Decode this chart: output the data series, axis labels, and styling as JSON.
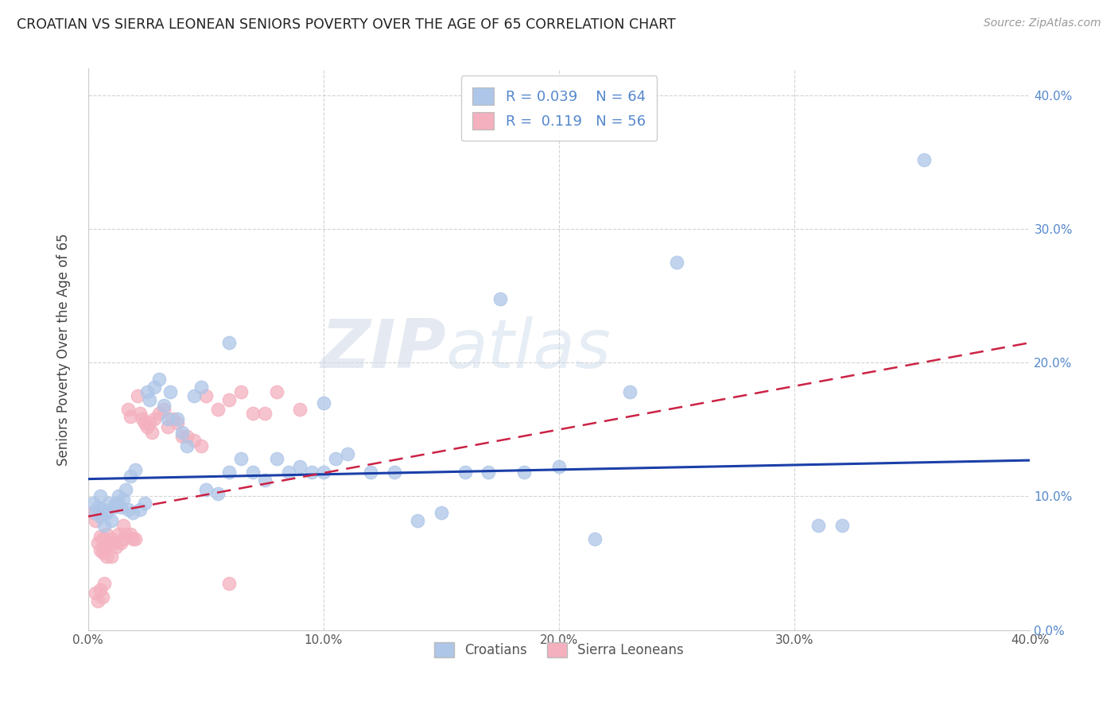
{
  "title": "CROATIAN VS SIERRA LEONEAN SENIORS POVERTY OVER THE AGE OF 65 CORRELATION CHART",
  "source": "Source: ZipAtlas.com",
  "ylabel": "Seniors Poverty Over the Age of 65",
  "xlim": [
    0.0,
    0.4
  ],
  "ylim": [
    0.0,
    0.42
  ],
  "xticks": [
    0.0,
    0.1,
    0.2,
    0.3,
    0.4
  ],
  "yticks": [
    0.0,
    0.1,
    0.2,
    0.3,
    0.4
  ],
  "xtick_labels": [
    "0.0%",
    "10.0%",
    "20.0%",
    "30.0%",
    "40.0%"
  ],
  "ytick_labels": [
    "0.0%",
    "10.0%",
    "20.0%",
    "30.0%",
    "40.0%"
  ],
  "croatian_color": "#aec6e8",
  "sierra_color": "#f4b0be",
  "trend_blue": "#1a3fa8",
  "trend_pink": "#cc2244",
  "watermark_text": "ZIPatlas",
  "legend_r_croatian": "R = 0.039",
  "legend_n_croatian": "N = 64",
  "legend_r_sierra": "R =  0.119",
  "legend_n_sierra": "N = 56",
  "croatian_x": [
    0.002,
    0.003,
    0.004,
    0.005,
    0.005,
    0.006,
    0.007,
    0.008,
    0.009,
    0.01,
    0.011,
    0.012,
    0.013,
    0.014,
    0.015,
    0.016,
    0.017,
    0.018,
    0.019,
    0.02,
    0.022,
    0.024,
    0.025,
    0.026,
    0.028,
    0.03,
    0.032,
    0.034,
    0.035,
    0.038,
    0.04,
    0.042,
    0.045,
    0.048,
    0.05,
    0.055,
    0.06,
    0.065,
    0.07,
    0.075,
    0.08,
    0.085,
    0.09,
    0.095,
    0.1,
    0.105,
    0.11,
    0.12,
    0.13,
    0.14,
    0.15,
    0.16,
    0.17,
    0.185,
    0.2,
    0.215,
    0.23,
    0.25,
    0.175,
    0.31,
    0.32,
    0.355,
    0.06,
    0.1
  ],
  "croatian_y": [
    0.095,
    0.088,
    0.092,
    0.1,
    0.085,
    0.09,
    0.078,
    0.088,
    0.095,
    0.082,
    0.092,
    0.095,
    0.1,
    0.092,
    0.098,
    0.105,
    0.09,
    0.115,
    0.088,
    0.12,
    0.09,
    0.095,
    0.178,
    0.172,
    0.182,
    0.188,
    0.168,
    0.158,
    0.178,
    0.158,
    0.148,
    0.138,
    0.175,
    0.182,
    0.105,
    0.102,
    0.118,
    0.128,
    0.118,
    0.112,
    0.128,
    0.118,
    0.122,
    0.118,
    0.118,
    0.128,
    0.132,
    0.118,
    0.118,
    0.082,
    0.088,
    0.118,
    0.118,
    0.118,
    0.122,
    0.068,
    0.178,
    0.275,
    0.248,
    0.078,
    0.078,
    0.352,
    0.215,
    0.17
  ],
  "sierra_x": [
    0.002,
    0.003,
    0.004,
    0.005,
    0.005,
    0.006,
    0.006,
    0.007,
    0.008,
    0.008,
    0.009,
    0.01,
    0.01,
    0.011,
    0.012,
    0.013,
    0.014,
    0.015,
    0.015,
    0.016,
    0.017,
    0.018,
    0.018,
    0.019,
    0.02,
    0.021,
    0.022,
    0.023,
    0.024,
    0.025,
    0.026,
    0.027,
    0.028,
    0.03,
    0.032,
    0.034,
    0.036,
    0.038,
    0.04,
    0.042,
    0.045,
    0.048,
    0.05,
    0.055,
    0.06,
    0.065,
    0.07,
    0.075,
    0.08,
    0.09,
    0.003,
    0.004,
    0.005,
    0.006,
    0.007,
    0.06
  ],
  "sierra_y": [
    0.088,
    0.082,
    0.065,
    0.07,
    0.06,
    0.058,
    0.068,
    0.062,
    0.072,
    0.055,
    0.065,
    0.068,
    0.055,
    0.065,
    0.062,
    0.072,
    0.065,
    0.068,
    0.078,
    0.072,
    0.165,
    0.16,
    0.072,
    0.068,
    0.068,
    0.175,
    0.162,
    0.158,
    0.155,
    0.152,
    0.155,
    0.148,
    0.158,
    0.162,
    0.165,
    0.152,
    0.158,
    0.155,
    0.145,
    0.145,
    0.142,
    0.138,
    0.175,
    0.165,
    0.172,
    0.178,
    0.162,
    0.162,
    0.178,
    0.165,
    0.028,
    0.022,
    0.03,
    0.025,
    0.035,
    0.035
  ]
}
